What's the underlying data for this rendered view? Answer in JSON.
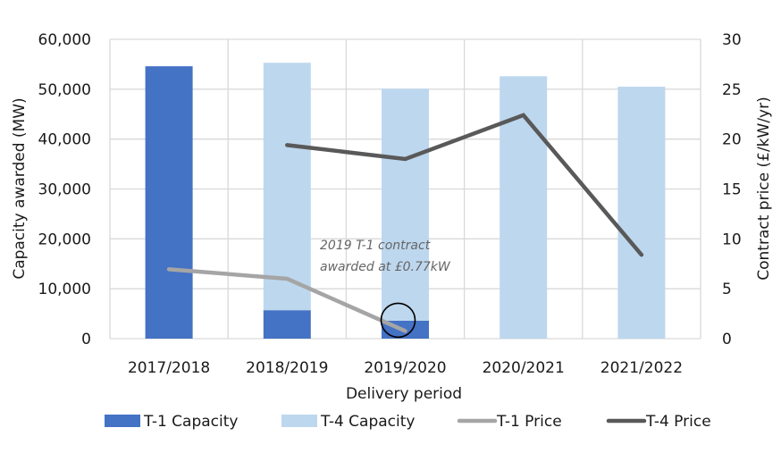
{
  "chart_data": {
    "type": "bar",
    "title": "",
    "xlabel": "Delivery period",
    "ylabel": "Capacity awarded (MW)",
    "y2label": "Contract price (£/kW/yr)",
    "categories": [
      "2017/2018",
      "2018/2019",
      "2019/2020",
      "2020/2021",
      "2021/2022"
    ],
    "ylim": [
      0,
      60000
    ],
    "y2lim": [
      0,
      30
    ],
    "yticks": [
      "0",
      "10,000",
      "20,000",
      "30,000",
      "40,000",
      "50,000",
      "60,000"
    ],
    "y2ticks": [
      "0",
      "5",
      "10",
      "15",
      "20",
      "25",
      "30"
    ],
    "grid": true,
    "legend_position": "bottom",
    "bar_series": [
      {
        "name": "T-1 Capacity",
        "color": "#4472C4",
        "values": [
          54600,
          5700,
          3600,
          0,
          0
        ]
      },
      {
        "name": "T-4 Capacity",
        "color": "#BDD7EE",
        "values": [
          0,
          49600,
          46500,
          52600,
          50500
        ]
      }
    ],
    "line_series": [
      {
        "name": "T-1 Price",
        "color": "#A5A5A5",
        "axis": "secondary",
        "values": [
          6.95,
          6.0,
          0.77,
          null,
          null
        ]
      },
      {
        "name": "T-4 Price",
        "color": "#595959",
        "axis": "secondary",
        "values": [
          null,
          19.4,
          18.0,
          22.4,
          8.4
        ]
      }
    ],
    "annotation": {
      "lines": [
        "2019 T-1 contract",
        "awarded at £0.77kW"
      ],
      "highlight_category": "2019/2020",
      "highlight_series": "T-1 Price"
    }
  }
}
